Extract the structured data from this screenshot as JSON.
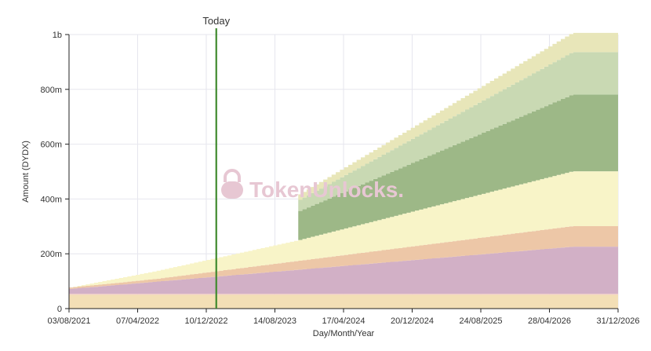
{
  "chart_data": {
    "type": "area",
    "stacked": true,
    "title": "",
    "xlabel": "Day/Month/Year",
    "ylabel": "Amount (DYDX)",
    "x_ticks": [
      "03/08/2021",
      "07/04/2022",
      "10/12/2022",
      "14/08/2023",
      "17/04/2024",
      "20/12/2024",
      "24/08/2025",
      "28/04/2026",
      "31/12/2026"
    ],
    "y_ticks": [
      "0",
      "200m",
      "400m",
      "600m",
      "800m",
      "1b"
    ],
    "ylim": [
      0,
      1000
    ],
    "y_unit": "millions DYDX",
    "grid": true,
    "legend": "none",
    "marker": {
      "label": "Today",
      "date": "2023-01-15",
      "color": "#3f8a2e"
    },
    "watermark": "TokenUnlocks.",
    "series": [
      {
        "color": "#f3dfb6",
        "points": [
          [
            "2021-08-03",
            50
          ],
          [
            "2026-12-31",
            50
          ]
        ]
      },
      {
        "color": "#f2cfc8",
        "points": [
          [
            "2021-08-03",
            4
          ],
          [
            "2026-12-31",
            4
          ]
        ]
      },
      {
        "color": "#d2b0c6",
        "points": [
          [
            "2021-08-03",
            18
          ],
          [
            "2026-07-15",
            172
          ],
          [
            "2026-12-31",
            172
          ]
        ]
      },
      {
        "color": "#edc7a7",
        "points": [
          [
            "2021-08-03",
            5
          ],
          [
            "2022-06-01",
            10
          ],
          [
            "2026-07-15",
            75
          ],
          [
            "2026-12-31",
            75
          ]
        ]
      },
      {
        "color": "#f8f4c8",
        "points": [
          [
            "2021-08-03",
            0
          ],
          [
            "2023-11-01",
            75
          ],
          [
            "2026-07-15",
            200
          ],
          [
            "2026-12-31",
            200
          ]
        ]
      },
      {
        "color": "#9db887",
        "points": [
          [
            "2021-08-03",
            0
          ],
          [
            "2023-11-01",
            0
          ],
          [
            "2023-11-02",
            105
          ],
          [
            "2026-07-15",
            280
          ],
          [
            "2026-12-31",
            280
          ]
        ]
      },
      {
        "color": "#c9d9b3",
        "points": [
          [
            "2021-08-03",
            0
          ],
          [
            "2023-11-01",
            0
          ],
          [
            "2023-11-02",
            40
          ],
          [
            "2026-07-15",
            155
          ],
          [
            "2026-12-31",
            155
          ]
        ]
      },
      {
        "color": "#e8e6b9",
        "points": [
          [
            "2021-08-03",
            0
          ],
          [
            "2023-11-01",
            0
          ],
          [
            "2023-11-02",
            20
          ],
          [
            "2026-07-15",
            70
          ],
          [
            "2026-12-31",
            70
          ]
        ]
      }
    ]
  }
}
